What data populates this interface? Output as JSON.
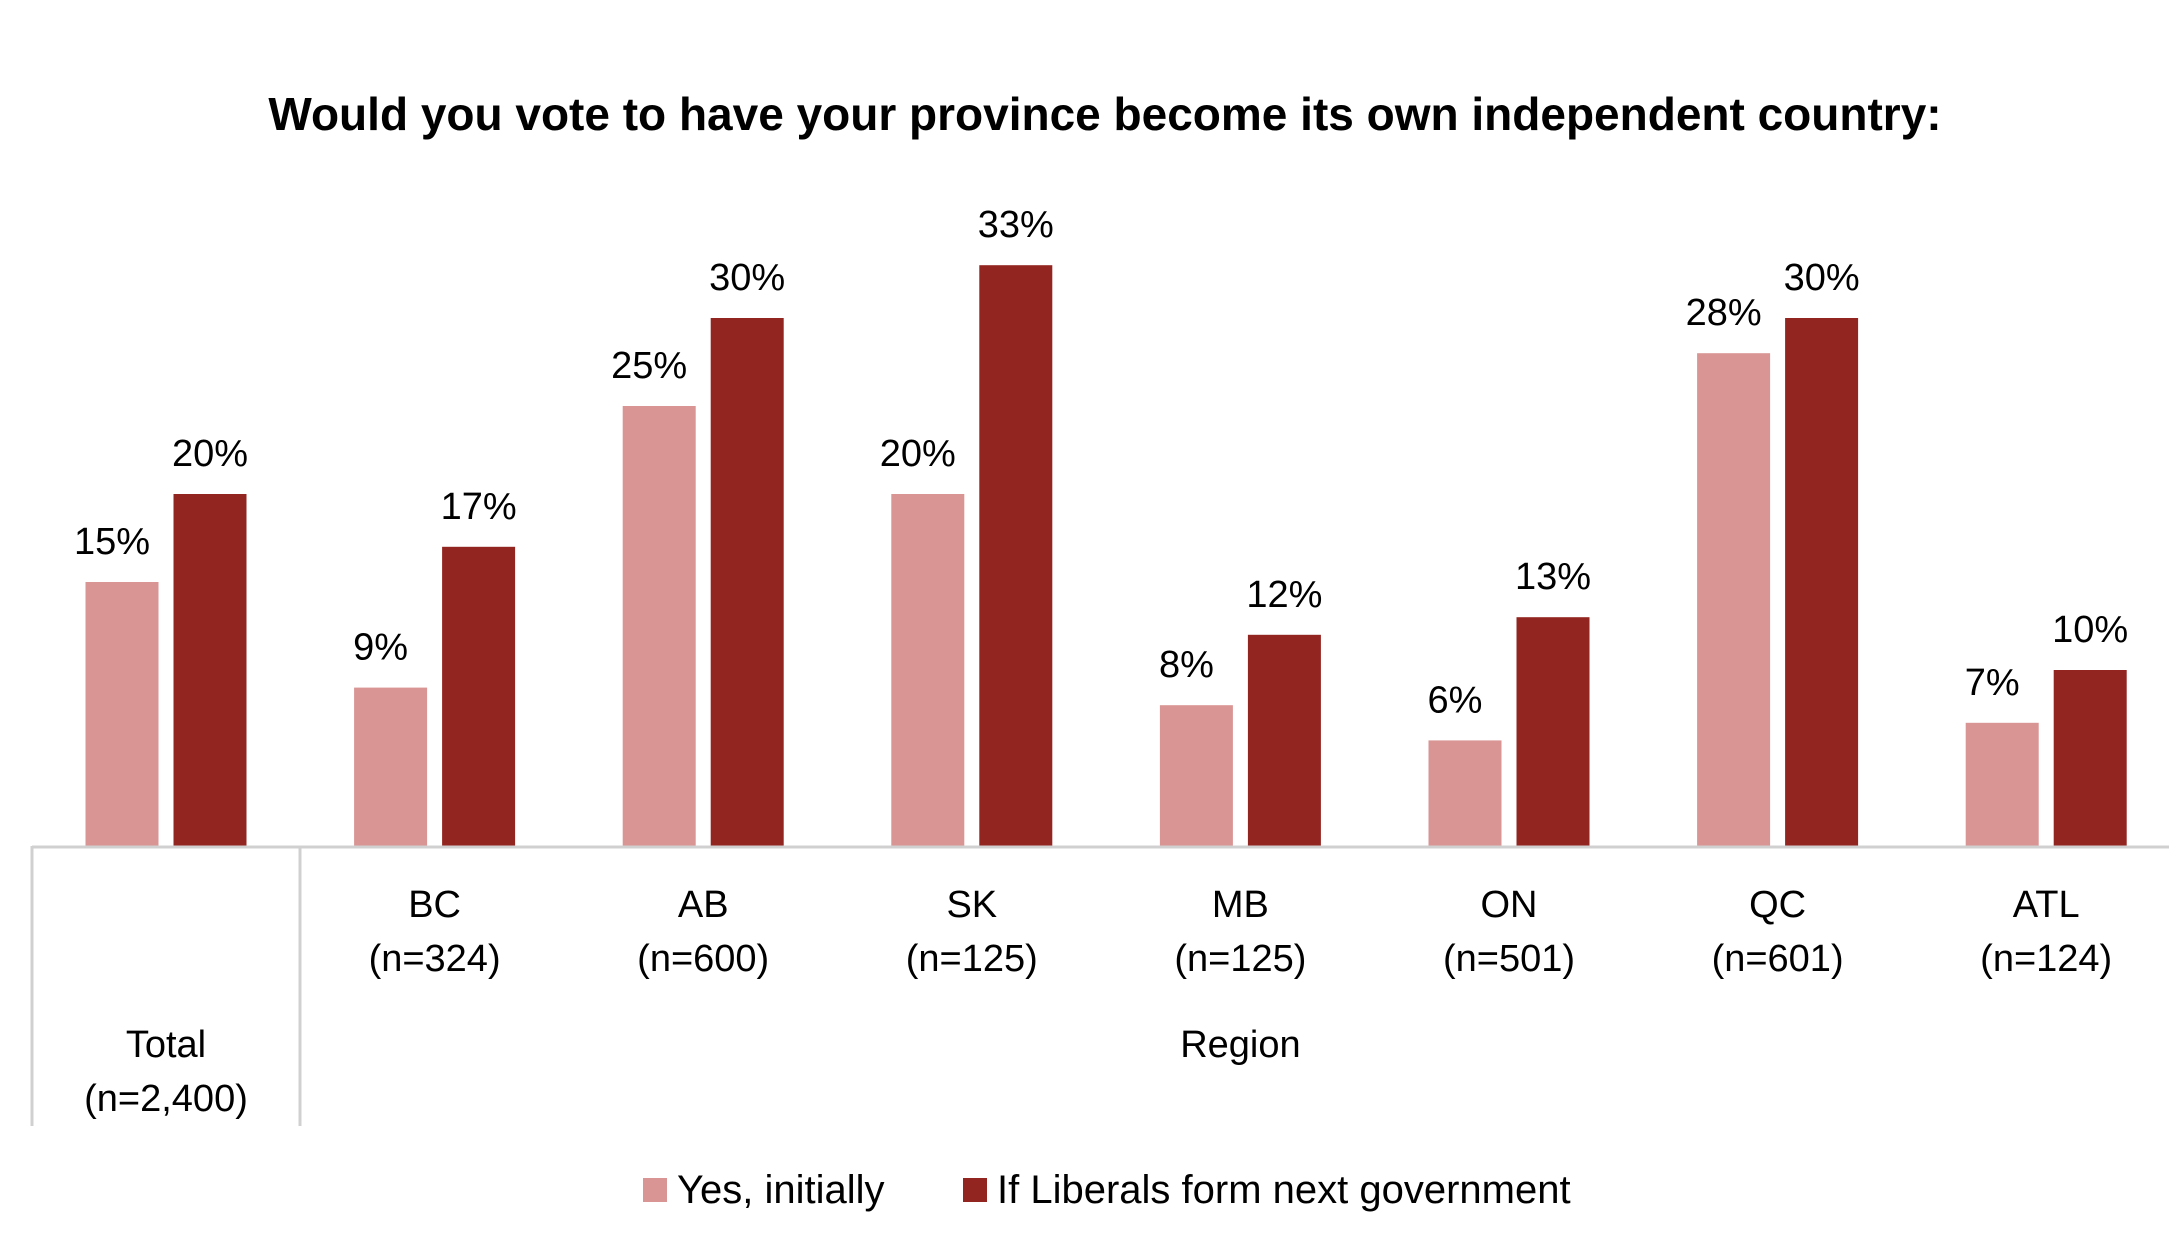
{
  "chart_data": {
    "type": "bar",
    "title": "Would you vote to have your province become its own independent country:",
    "categories": [
      {
        "name": "Total",
        "n": "(n=2,400)"
      },
      {
        "name": "BC",
        "n": "(n=324)"
      },
      {
        "name": "AB",
        "n": "(n=600)"
      },
      {
        "name": "SK",
        "n": "(n=125)"
      },
      {
        "name": "MB",
        "n": "(n=125)"
      },
      {
        "name": "ON",
        "n": "(n=501)"
      },
      {
        "name": "QC",
        "n": "(n=601)"
      },
      {
        "name": "ATL",
        "n": "(n=124)"
      }
    ],
    "group_label": "Region",
    "series": [
      {
        "name": "Yes, initially",
        "color": "#d99594",
        "values": [
          15,
          9,
          25,
          20,
          8,
          6,
          28,
          7
        ]
      },
      {
        "name": "If Liberals form next government",
        "color": "#922520",
        "values": [
          20,
          17,
          30,
          33,
          12,
          13,
          30,
          10
        ]
      }
    ],
    "value_suffix": "%",
    "ylim": [
      0,
      35
    ],
    "grid": false,
    "legend_position": "bottom",
    "axis_color": "#d0d0d0"
  }
}
